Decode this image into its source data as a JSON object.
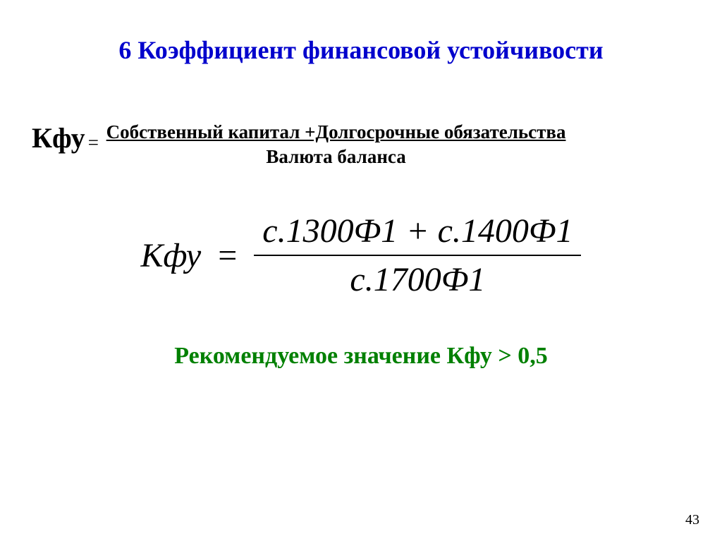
{
  "title": {
    "text": "6 Коэффициент финансовой устойчивости",
    "color": "#0000cc",
    "fontsize": 36
  },
  "formula_text": {
    "lhs": "Кфу",
    "lhs_fontsize": 40,
    "equals": "=",
    "numerator": "Собственный капитал +Долгосрочные обязательства",
    "denominator": "Валюта баланса",
    "rhs_fontsize": 27,
    "color": "#000000"
  },
  "math_formula": {
    "lhs": "Кфу",
    "equals": "=",
    "numerator": "с.1300Ф1 + с.1400Ф1",
    "denominator": "с.1700Ф1",
    "fontsize": 48,
    "color": "#000000",
    "line_width": 2
  },
  "recommend": {
    "text": "Рекомендуемое значение  Кфу > 0,5",
    "color": "#008000",
    "fontsize": 34
  },
  "page_number": {
    "text": "43",
    "color": "#000000",
    "fontsize": 20
  },
  "background_color": "#ffffff"
}
